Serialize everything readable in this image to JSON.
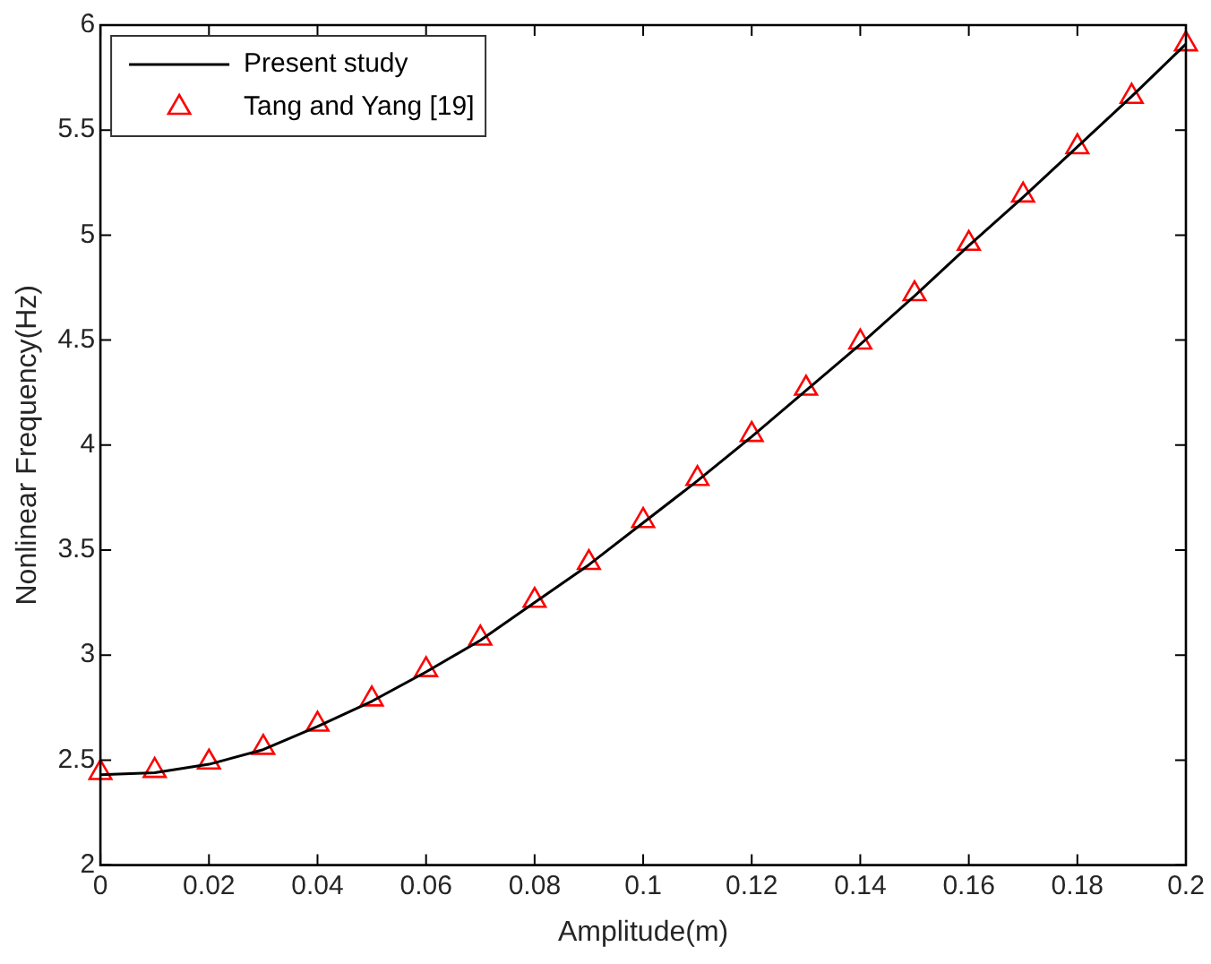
{
  "chart_data": {
    "type": "line",
    "xlabel": "Amplitude(m)",
    "ylabel": "Nonlinear Frequency(Hz)",
    "x": [
      0,
      0.01,
      0.02,
      0.03,
      0.04,
      0.05,
      0.06,
      0.07,
      0.08,
      0.09,
      0.1,
      0.11,
      0.12,
      0.13,
      0.14,
      0.15,
      0.16,
      0.17,
      0.18,
      0.19,
      0.2
    ],
    "series": [
      {
        "name": "Present study",
        "type": "line",
        "color": "#000000",
        "marker": "none",
        "line_style": "solid",
        "values": [
          2.43,
          2.44,
          2.48,
          2.55,
          2.66,
          2.78,
          2.92,
          3.07,
          3.25,
          3.43,
          3.63,
          3.83,
          4.04,
          4.26,
          4.48,
          4.71,
          4.95,
          5.18,
          5.42,
          5.66,
          5.91
        ]
      },
      {
        "name": "Tang and Yang [19]",
        "type": "scatter",
        "color": "#ff0000",
        "marker": "triangle",
        "values": [
          2.44,
          2.45,
          2.49,
          2.56,
          2.67,
          2.79,
          2.93,
          3.08,
          3.26,
          3.44,
          3.64,
          3.84,
          4.05,
          4.27,
          4.49,
          4.72,
          4.96,
          5.19,
          5.42,
          5.66,
          5.91
        ]
      }
    ],
    "xlim": [
      0,
      0.2
    ],
    "xticks": [
      0,
      0.02,
      0.04,
      0.06,
      0.08,
      0.1,
      0.12,
      0.14,
      0.16,
      0.18,
      0.2
    ],
    "ylim": [
      2,
      6
    ],
    "yticks": [
      2,
      2.5,
      3,
      3.5,
      4,
      4.5,
      5,
      5.5,
      6
    ],
    "legend": "top left"
  }
}
